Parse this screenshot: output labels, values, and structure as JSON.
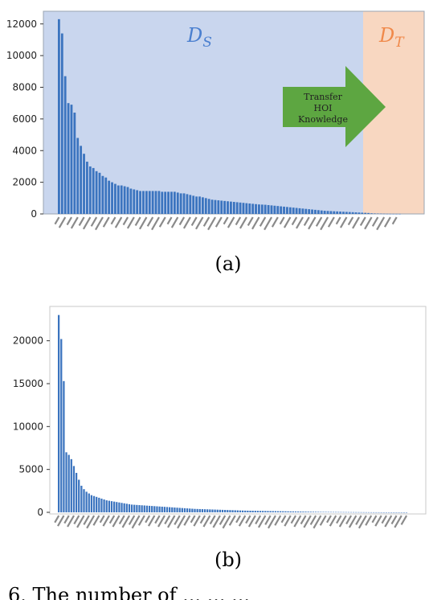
{
  "caption": "6. The number of ... ... ...",
  "chart_data": [
    {
      "type": "bar",
      "panel_label": "(a)",
      "ylim": [
        0,
        12800
      ],
      "yticks": [
        0,
        2000,
        4000,
        6000,
        8000,
        10000,
        12000
      ],
      "ytick_labels": [
        "0",
        "2000",
        "4000",
        "6000",
        "8000",
        "10000",
        "12000"
      ],
      "source_region": {
        "label": "D",
        "subscript": "S",
        "color": "#4a7fcf",
        "bg": "#c9d6ee"
      },
      "target_region": {
        "label": "D",
        "subscript": "T",
        "color": "#f0894a",
        "bg": "#f8d7c1",
        "first_category": 100
      },
      "arrow": {
        "lines": [
          "Transfer",
          "HOI",
          "Knowledge"
        ],
        "color": "#5da641"
      },
      "bar_color": "#3b74bf",
      "values": [
        12300,
        11400,
        8700,
        7000,
        6900,
        6400,
        4800,
        4300,
        3800,
        3300,
        3000,
        2900,
        2700,
        2600,
        2400,
        2300,
        2100,
        2000,
        1900,
        1800,
        1800,
        1750,
        1700,
        1600,
        1550,
        1500,
        1450,
        1450,
        1450,
        1450,
        1450,
        1450,
        1450,
        1400,
        1400,
        1400,
        1400,
        1400,
        1350,
        1300,
        1300,
        1250,
        1200,
        1150,
        1100,
        1100,
        1050,
        1000,
        950,
        900,
        880,
        860,
        840,
        820,
        800,
        780,
        760,
        740,
        720,
        700,
        680,
        660,
        640,
        620,
        600,
        590,
        580,
        560,
        540,
        520,
        500,
        480,
        460,
        440,
        420,
        400,
        380,
        360,
        340,
        320,
        300,
        280,
        260,
        240,
        220,
        200,
        190,
        180,
        170,
        160,
        150,
        140,
        130,
        120,
        110,
        100,
        90,
        80,
        70,
        60,
        40,
        30,
        25,
        20,
        15,
        10,
        8,
        6,
        5,
        4
      ]
    },
    {
      "type": "bar",
      "panel_label": "(b)",
      "ylim": [
        0,
        24000
      ],
      "yticks": [
        0,
        5000,
        10000,
        15000,
        20000
      ],
      "ytick_labels": [
        "0",
        "5000",
        "10000",
        "15000",
        "20000"
      ],
      "bar_color": "#3b74bf",
      "values": [
        23000,
        20200,
        15300,
        7000,
        6700,
        6200,
        5400,
        4600,
        3800,
        3100,
        2700,
        2400,
        2200,
        2000,
        1900,
        1800,
        1700,
        1600,
        1500,
        1400,
        1350,
        1300,
        1250,
        1200,
        1150,
        1100,
        1050,
        1000,
        950,
        900,
        880,
        860,
        840,
        820,
        800,
        780,
        760,
        740,
        720,
        700,
        680,
        660,
        640,
        620,
        600,
        580,
        560,
        540,
        520,
        500,
        480,
        460,
        440,
        420,
        400,
        390,
        380,
        370,
        360,
        350,
        340,
        330,
        320,
        310,
        300,
        290,
        280,
        270,
        260,
        250,
        240,
        230,
        220,
        210,
        200,
        195,
        190,
        185,
        180,
        175,
        170,
        165,
        160,
        155,
        150,
        145,
        140,
        135,
        130,
        125,
        120,
        115,
        110,
        105,
        100,
        95,
        90,
        85,
        80,
        75,
        70,
        65,
        60,
        55,
        50,
        48,
        46,
        44,
        42,
        40,
        38,
        36,
        34,
        32,
        30,
        28,
        26,
        24,
        22,
        20,
        18,
        16,
        14,
        12,
        10,
        9,
        8,
        7,
        6,
        5,
        4,
        4,
        3,
        3,
        2,
        2,
        2,
        1,
        1
      ]
    }
  ]
}
